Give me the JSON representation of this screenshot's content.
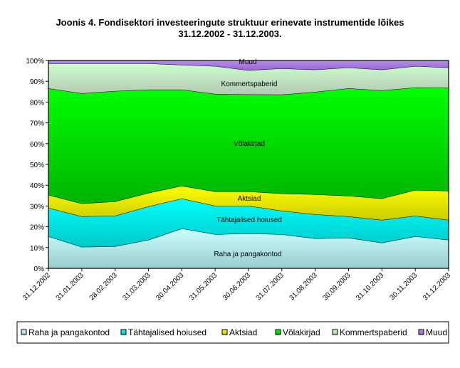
{
  "chart_data": {
    "type": "area",
    "stacked": true,
    "title": "Joonis 4. Fondisektori investeeringute struktuur erinevate instrumentide lõikes",
    "subtitle": "31.12.2002 - 31.12.2003.",
    "xlabel": "",
    "ylabel": "",
    "ylim": [
      0,
      100
    ],
    "y_ticks": [
      "0%",
      "10%",
      "20%",
      "30%",
      "40%",
      "50%",
      "60%",
      "70%",
      "80%",
      "90%",
      "100%"
    ],
    "categories": [
      "31.12.2002",
      "31.01.2003",
      "28.02.2003",
      "31.03.2003",
      "30.04.2003",
      "31.05.2003",
      "30.06.2003",
      "31.07.2003",
      "31.08.2003",
      "30.09.2003",
      "31.10.2003",
      "30.11.2003",
      "31.12.2003"
    ],
    "series": [
      {
        "name": "Raha ja pangakontod",
        "color": "#CCFFFF",
        "color2": "#99CCCC",
        "values": [
          15.4,
          10.3,
          10.6,
          13.7,
          19.2,
          16.4,
          16.8,
          16.4,
          14.4,
          14.7,
          12.3,
          15.4,
          13.7
        ]
      },
      {
        "name": "Tähtajalised hoiused",
        "color": "#00FFFF",
        "color2": "#00C8C8",
        "values": [
          13.7,
          14.7,
          14.7,
          16.1,
          14.4,
          13.7,
          13.3,
          11.3,
          11.6,
          10.3,
          11.0,
          9.9,
          9.6
        ]
      },
      {
        "name": "Aktsiad",
        "color": "#FFFF00",
        "color2": "#CCCC00",
        "values": [
          6.2,
          6.2,
          6.9,
          6.5,
          6.1,
          6.9,
          6.9,
          8.3,
          9.6,
          9.9,
          10.3,
          12.4,
          14.0
        ]
      },
      {
        "name": "Võlakirjad",
        "color": "#00FF00",
        "color2": "#00B400",
        "values": [
          51.3,
          53.0,
          53.1,
          49.7,
          46.3,
          46.9,
          46.7,
          47.6,
          49.3,
          51.7,
          52.0,
          49.3,
          49.6
        ]
      },
      {
        "name": "Kommertspaberid",
        "color": "#CCFFCC",
        "color2": "#B4C8B4",
        "values": [
          12.0,
          14.4,
          13.3,
          12.6,
          11.9,
          13.4,
          11.6,
          12.6,
          10.7,
          10.0,
          10.0,
          10.3,
          9.7
        ]
      },
      {
        "name": "Muud",
        "color": "#B48CF0",
        "color2": "#9966CC",
        "values": [
          1.4,
          1.4,
          1.4,
          1.4,
          2.1,
          2.7,
          4.8,
          3.8,
          4.4,
          3.4,
          4.4,
          2.7,
          3.4
        ]
      }
    ],
    "legend_position": "bottom",
    "grid": false
  }
}
